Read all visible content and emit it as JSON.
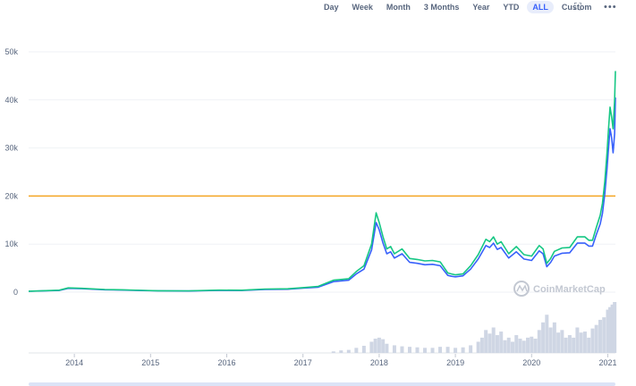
{
  "toolbar": {
    "ranges": [
      "Day",
      "Week",
      "Month",
      "3 Months",
      "Year",
      "YTD",
      "ALL",
      "Custom"
    ],
    "active": "ALL",
    "fullscreen_icon": "fullscreen-icon",
    "more_icon": "more-icon"
  },
  "watermark": "CoinMarketCap",
  "colors": {
    "price": "#16c784",
    "market_cap": "#3861fb",
    "reference": "#f5a623",
    "volume": "#cfd6e4"
  },
  "chart_data": {
    "type": "line",
    "title": "",
    "xlabel": "",
    "ylabel": "",
    "x_ticks": [
      "2014",
      "2015",
      "2016",
      "2017",
      "2018",
      "2019",
      "2020",
      "2021"
    ],
    "y_ticks": [
      "0",
      "10k",
      "20k",
      "30k",
      "40k",
      "50k"
    ],
    "ylim": [
      0,
      50000
    ],
    "xlim": [
      2013.4,
      2021.1
    ],
    "reference_line": 20000,
    "grid": true,
    "series": [
      {
        "key": "green",
        "x": [
          2013.4,
          2013.8,
          2013.92,
          2014.1,
          2014.4,
          2014.6,
          2014.9,
          2015.1,
          2015.5,
          2015.9,
          2016.2,
          2016.5,
          2016.8,
          2017.0,
          2017.2,
          2017.4,
          2017.6,
          2017.7,
          2017.8,
          2017.9,
          2017.96,
          2018.0,
          2018.05,
          2018.1,
          2018.15,
          2018.2,
          2018.3,
          2018.4,
          2018.5,
          2018.6,
          2018.7,
          2018.8,
          2018.9,
          2018.95,
          2019.0,
          2019.1,
          2019.2,
          2019.3,
          2019.4,
          2019.45,
          2019.5,
          2019.55,
          2019.6,
          2019.7,
          2019.8,
          2019.9,
          2020.0,
          2020.1,
          2020.15,
          2020.2,
          2020.25,
          2020.3,
          2020.4,
          2020.5,
          2020.6,
          2020.7,
          2020.75,
          2020.8,
          2020.85,
          2020.9,
          2020.93,
          2020.96,
          2020.99,
          2021.01,
          2021.03,
          2021.05,
          2021.07,
          2021.09,
          2021.1
        ],
        "y": [
          200,
          400,
          900,
          800,
          550,
          500,
          380,
          300,
          280,
          420,
          400,
          650,
          700,
          950,
          1200,
          2500,
          2800,
          4300,
          5500,
          10000,
          16500,
          14500,
          11500,
          9000,
          9500,
          8000,
          9000,
          7000,
          6800,
          6500,
          6600,
          6300,
          4000,
          3800,
          3600,
          3800,
          5500,
          7800,
          11000,
          10500,
          11500,
          10000,
          10500,
          8000,
          9500,
          7800,
          7500,
          9700,
          9000,
          6000,
          7000,
          8500,
          9200,
          9300,
          11500,
          11500,
          10800,
          10800,
          13500,
          16000,
          18500,
          23000,
          29000,
          34000,
          38500,
          36500,
          34000,
          40000,
          46000
        ]
      },
      {
        "key": "blue",
        "x": [
          2013.4,
          2013.8,
          2013.92,
          2014.1,
          2014.4,
          2014.6,
          2014.9,
          2015.1,
          2015.5,
          2015.9,
          2016.2,
          2016.5,
          2016.8,
          2017.0,
          2017.2,
          2017.4,
          2017.6,
          2017.7,
          2017.8,
          2017.9,
          2017.96,
          2018.0,
          2018.05,
          2018.1,
          2018.15,
          2018.2,
          2018.3,
          2018.4,
          2018.5,
          2018.6,
          2018.7,
          2018.8,
          2018.9,
          2018.95,
          2019.0,
          2019.1,
          2019.2,
          2019.3,
          2019.4,
          2019.45,
          2019.5,
          2019.55,
          2019.6,
          2019.7,
          2019.8,
          2019.9,
          2020.0,
          2020.1,
          2020.15,
          2020.2,
          2020.25,
          2020.3,
          2020.4,
          2020.5,
          2020.6,
          2020.7,
          2020.75,
          2020.8,
          2020.85,
          2020.9,
          2020.93,
          2020.96,
          2020.99,
          2021.01,
          2021.03,
          2021.05,
          2021.07,
          2021.09,
          2021.1
        ],
        "y": [
          180,
          350,
          800,
          720,
          500,
          450,
          340,
          270,
          250,
          380,
          360,
          580,
          620,
          850,
          1050,
          2200,
          2500,
          3800,
          4800,
          8800,
          14500,
          13000,
          10200,
          8000,
          8400,
          7100,
          8000,
          6200,
          6000,
          5700,
          5800,
          5500,
          3500,
          3300,
          3200,
          3400,
          4800,
          6900,
          9700,
          9300,
          10200,
          8900,
          9300,
          7100,
          8400,
          6900,
          6600,
          8600,
          8000,
          5300,
          6200,
          7500,
          8100,
          8200,
          10200,
          10200,
          9600,
          9600,
          12000,
          14200,
          16400,
          20400,
          25700,
          30000,
          34000,
          32200,
          29000,
          33000,
          40500
        ]
      }
    ],
    "volume_x": [
      2017.4,
      2017.5,
      2017.6,
      2017.7,
      2017.8,
      2017.9,
      2017.95,
      2018.0,
      2018.05,
      2018.1,
      2018.2,
      2018.3,
      2018.4,
      2018.5,
      2018.6,
      2018.7,
      2018.8,
      2018.9,
      2019.0,
      2019.1,
      2019.2,
      2019.3,
      2019.35,
      2019.4,
      2019.45,
      2019.5,
      2019.55,
      2019.6,
      2019.65,
      2019.7,
      2019.75,
      2019.8,
      2019.85,
      2019.9,
      2019.95,
      2020.0,
      2020.05,
      2020.1,
      2020.15,
      2020.2,
      2020.25,
      2020.3,
      2020.35,
      2020.4,
      2020.45,
      2020.5,
      2020.55,
      2020.6,
      2020.65,
      2020.7,
      2020.75,
      2020.8,
      2020.85,
      2020.9,
      2020.95,
      2021.0,
      2021.03,
      2021.06,
      2021.09
    ],
    "volume_y": [
      0.03,
      0.05,
      0.06,
      0.1,
      0.14,
      0.22,
      0.28,
      0.3,
      0.27,
      0.18,
      0.15,
      0.13,
      0.12,
      0.11,
      0.1,
      0.1,
      0.12,
      0.12,
      0.1,
      0.11,
      0.15,
      0.22,
      0.3,
      0.45,
      0.38,
      0.5,
      0.35,
      0.42,
      0.25,
      0.3,
      0.22,
      0.35,
      0.28,
      0.24,
      0.3,
      0.32,
      0.28,
      0.45,
      0.6,
      0.75,
      0.5,
      0.6,
      0.4,
      0.45,
      0.3,
      0.35,
      0.3,
      0.5,
      0.4,
      0.42,
      0.3,
      0.48,
      0.55,
      0.65,
      0.7,
      0.85,
      0.9,
      0.95,
      1.0
    ]
  }
}
